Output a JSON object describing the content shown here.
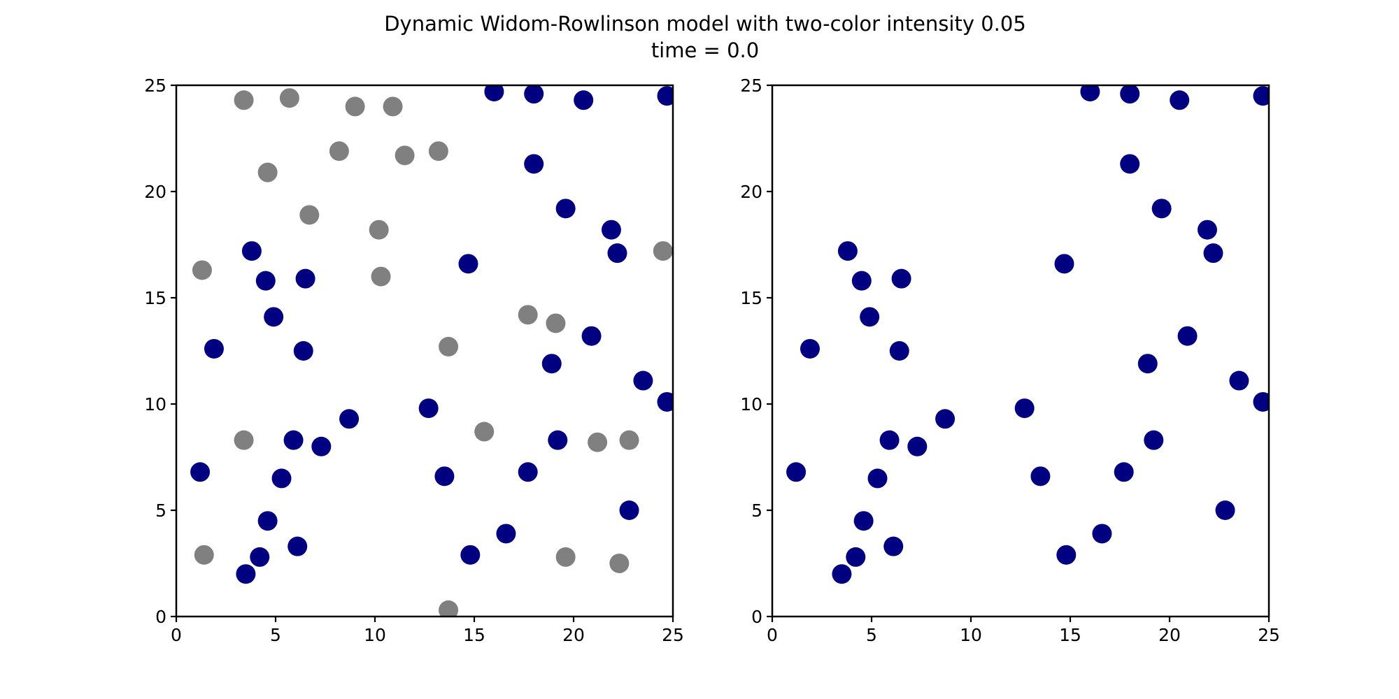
{
  "figure": {
    "title_line1": "Dynamic Widom-Rowlinson model with two-color intensity 0.05",
    "title_line2": "time = 0.0"
  },
  "colors": {
    "type_a": "#000080",
    "type_b": "#808080"
  },
  "chart_data": [
    {
      "type": "scatter",
      "xlim": [
        0,
        25
      ],
      "ylim": [
        0,
        25
      ],
      "xticks": [
        0,
        5,
        10,
        15,
        20,
        25
      ],
      "yticks": [
        0,
        5,
        10,
        15,
        20,
        25
      ],
      "grid": false,
      "series": [
        {
          "color": "#000080",
          "points": [
            [
              16.0,
              24.7
            ],
            [
              18.0,
              24.6
            ],
            [
              20.5,
              24.3
            ],
            [
              24.7,
              24.5
            ],
            [
              18.0,
              21.3
            ],
            [
              19.6,
              19.2
            ],
            [
              21.9,
              18.2
            ],
            [
              22.2,
              17.1
            ],
            [
              3.8,
              17.2
            ],
            [
              4.5,
              15.8
            ],
            [
              6.5,
              15.9
            ],
            [
              14.7,
              16.6
            ],
            [
              4.9,
              14.1
            ],
            [
              1.9,
              12.6
            ],
            [
              6.4,
              12.5
            ],
            [
              20.9,
              13.2
            ],
            [
              18.9,
              11.9
            ],
            [
              23.5,
              11.1
            ],
            [
              24.7,
              10.1
            ],
            [
              12.7,
              9.8
            ],
            [
              8.7,
              9.3
            ],
            [
              5.9,
              8.3
            ],
            [
              7.3,
              8.0
            ],
            [
              19.2,
              8.3
            ],
            [
              1.2,
              6.8
            ],
            [
              5.3,
              6.5
            ],
            [
              13.5,
              6.6
            ],
            [
              17.7,
              6.8
            ],
            [
              22.8,
              5.0
            ],
            [
              4.6,
              4.5
            ],
            [
              16.6,
              3.9
            ],
            [
              4.2,
              2.8
            ],
            [
              6.1,
              3.3
            ],
            [
              14.8,
              2.9
            ],
            [
              3.5,
              2.0
            ]
          ]
        },
        {
          "color": "#808080",
          "points": [
            [
              3.4,
              24.3
            ],
            [
              5.7,
              24.4
            ],
            [
              9.0,
              24.0
            ],
            [
              10.9,
              24.0
            ],
            [
              8.2,
              21.9
            ],
            [
              11.5,
              21.7
            ],
            [
              13.2,
              21.9
            ],
            [
              4.6,
              20.9
            ],
            [
              6.7,
              18.9
            ],
            [
              10.2,
              18.2
            ],
            [
              1.3,
              16.3
            ],
            [
              10.3,
              16.0
            ],
            [
              24.5,
              17.2
            ],
            [
              17.7,
              14.2
            ],
            [
              19.1,
              13.8
            ],
            [
              13.7,
              12.7
            ],
            [
              3.4,
              8.3
            ],
            [
              15.5,
              8.7
            ],
            [
              21.2,
              8.2
            ],
            [
              22.8,
              8.3
            ],
            [
              1.4,
              2.9
            ],
            [
              19.6,
              2.8
            ],
            [
              22.3,
              2.5
            ],
            [
              13.7,
              0.3
            ]
          ]
        }
      ]
    },
    {
      "type": "scatter",
      "xlim": [
        0,
        25
      ],
      "ylim": [
        0,
        25
      ],
      "xticks": [
        0,
        5,
        10,
        15,
        20,
        25
      ],
      "yticks": [
        0,
        5,
        10,
        15,
        20,
        25
      ],
      "grid": false,
      "series": [
        {
          "color": "#000080",
          "points": [
            [
              16.0,
              24.7
            ],
            [
              18.0,
              24.6
            ],
            [
              20.5,
              24.3
            ],
            [
              24.7,
              24.5
            ],
            [
              18.0,
              21.3
            ],
            [
              19.6,
              19.2
            ],
            [
              21.9,
              18.2
            ],
            [
              22.2,
              17.1
            ],
            [
              3.8,
              17.2
            ],
            [
              4.5,
              15.8
            ],
            [
              6.5,
              15.9
            ],
            [
              14.7,
              16.6
            ],
            [
              4.9,
              14.1
            ],
            [
              1.9,
              12.6
            ],
            [
              6.4,
              12.5
            ],
            [
              20.9,
              13.2
            ],
            [
              18.9,
              11.9
            ],
            [
              23.5,
              11.1
            ],
            [
              24.7,
              10.1
            ],
            [
              12.7,
              9.8
            ],
            [
              8.7,
              9.3
            ],
            [
              5.9,
              8.3
            ],
            [
              7.3,
              8.0
            ],
            [
              19.2,
              8.3
            ],
            [
              1.2,
              6.8
            ],
            [
              5.3,
              6.5
            ],
            [
              13.5,
              6.6
            ],
            [
              17.7,
              6.8
            ],
            [
              22.8,
              5.0
            ],
            [
              4.6,
              4.5
            ],
            [
              16.6,
              3.9
            ],
            [
              4.2,
              2.8
            ],
            [
              6.1,
              3.3
            ],
            [
              14.8,
              2.9
            ],
            [
              3.5,
              2.0
            ]
          ]
        }
      ]
    }
  ]
}
